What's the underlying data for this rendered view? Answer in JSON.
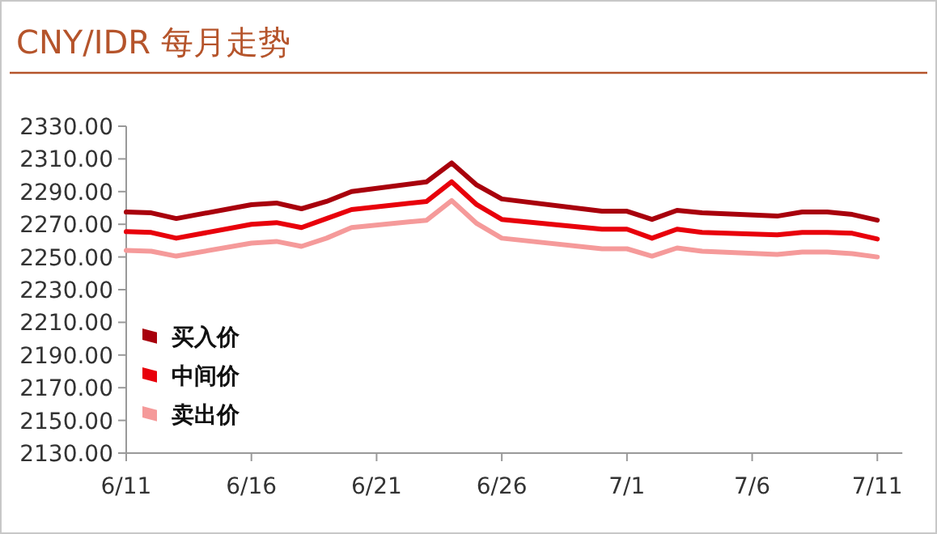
{
  "chart_data": {
    "type": "line",
    "title": "CNY/IDR 每月走势",
    "x": [
      "--06-11",
      "--06-12",
      "--06-13",
      "--06-16",
      "--06-17",
      "--06-18",
      "--06-19",
      "--06-20",
      "--06-23",
      "--06-24",
      "--06-25",
      "--06-26",
      "--06-30",
      "--07-01",
      "--07-02",
      "--07-03",
      "--07-04",
      "--07-07",
      "--07-08",
      "--07-09",
      "--07-10",
      "--07-11"
    ],
    "series": [
      {
        "name": "买入价",
        "color": "#a8000c",
        "values": [
          2277.5,
          2277,
          2273.5,
          2282,
          2283,
          2279.5,
          2284,
          2290,
          2296,
          2307.5,
          2294,
          2285.5,
          2278,
          2278,
          2273,
          2278.5,
          2277,
          2275,
          2277.5,
          2277.5,
          2276,
          2272.5
        ]
      },
      {
        "name": "中间价",
        "color": "#e8000b",
        "values": [
          2265.5,
          2265,
          2261.5,
          2270,
          2271,
          2268,
          2273.5,
          2279,
          2284,
          2296,
          2282,
          2273,
          2267,
          2267,
          2261.5,
          2267,
          2265,
          2263.5,
          2265,
          2265,
          2264.5,
          2261
        ]
      },
      {
        "name": "卖出价",
        "color": "#f59a9a",
        "values": [
          2254,
          2253.5,
          2250.5,
          2258.5,
          2259.5,
          2256.5,
          2261.5,
          2268,
          2272.5,
          2284.5,
          2270.5,
          2261.5,
          2255,
          2255,
          2250.5,
          2255.5,
          2253.5,
          2251.5,
          2253,
          2253,
          2252,
          2250
        ]
      }
    ],
    "xlim": [
      "--06-11",
      "--07-12"
    ],
    "xticks": [
      {
        "value": "--06-11",
        "label": "6/11"
      },
      {
        "value": "--06-16",
        "label": "6/16"
      },
      {
        "value": "--06-21",
        "label": "6/21"
      },
      {
        "value": "--06-26",
        "label": "6/26"
      },
      {
        "value": "--07-01",
        "label": "7/1"
      },
      {
        "value": "--07-06",
        "label": "7/6"
      },
      {
        "value": "--07-11",
        "label": "7/11"
      }
    ],
    "ylim": [
      2130,
      2330
    ],
    "yticks": [
      {
        "value": 2130,
        "label": "2130.00"
      },
      {
        "value": 2150,
        "label": "2150.00"
      },
      {
        "value": 2170,
        "label": "2170.00"
      },
      {
        "value": 2190,
        "label": "2190.00"
      },
      {
        "value": 2210,
        "label": "2210.00"
      },
      {
        "value": 2230,
        "label": "2230.00"
      },
      {
        "value": 2250,
        "label": "2250.00"
      },
      {
        "value": 2270,
        "label": "2270.00"
      },
      {
        "value": 2290,
        "label": "2290.00"
      },
      {
        "value": 2310,
        "label": "2310.00"
      },
      {
        "value": 2330,
        "label": "2330.00"
      }
    ],
    "grid": false,
    "legend": "left",
    "marker": "none",
    "line_style": "solid"
  }
}
